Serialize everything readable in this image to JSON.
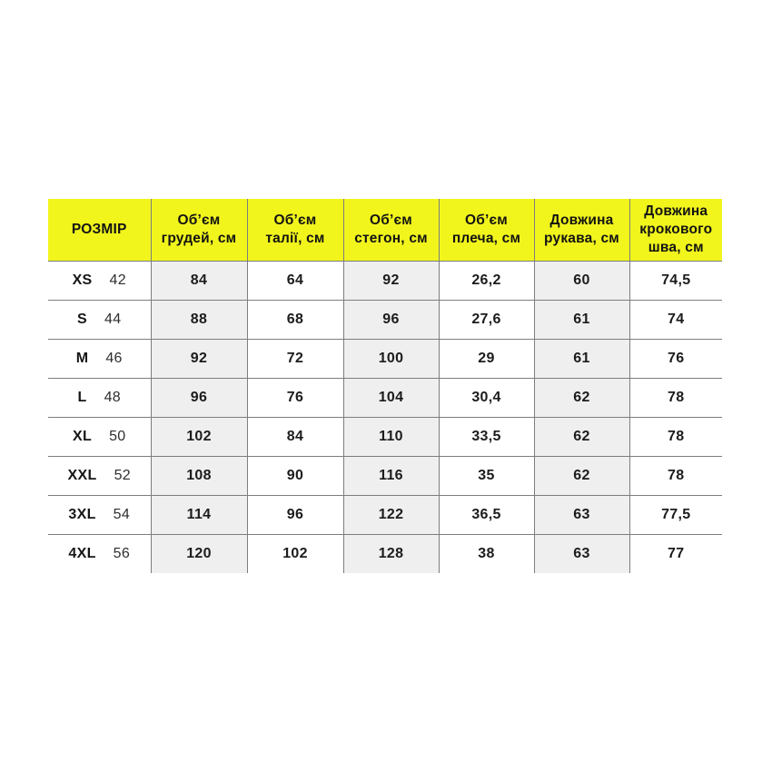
{
  "colors": {
    "header_background": "#f1f51c",
    "stripe_column_background": "#efefef",
    "border": "#7d7d7d",
    "text": "#1c1c1c",
    "page_background": "#ffffff"
  },
  "chart_data": {
    "type": "table",
    "title": "",
    "headers": [
      "РОЗМІР",
      "Об’єм\nгрудей, см",
      "Об’єм\nталії, см",
      "Об’єм\nстегон, см",
      "Об’єм\nплеча, см",
      "Довжина\nрукава, см",
      "Довжина\nкрокового\nшва, см"
    ],
    "rows": [
      {
        "size": "XS",
        "eu": "42",
        "values": [
          "84",
          "64",
          "92",
          "26,2",
          "60",
          "74,5"
        ]
      },
      {
        "size": "S",
        "eu": "44",
        "values": [
          "88",
          "68",
          "96",
          "27,6",
          "61",
          "74"
        ]
      },
      {
        "size": "M",
        "eu": "46",
        "values": [
          "92",
          "72",
          "100",
          "29",
          "61",
          "76"
        ]
      },
      {
        "size": "L",
        "eu": "48",
        "values": [
          "96",
          "76",
          "104",
          "30,4",
          "62",
          "78"
        ]
      },
      {
        "size": "XL",
        "eu": "50",
        "values": [
          "102",
          "84",
          "110",
          "33,5",
          "62",
          "78"
        ]
      },
      {
        "size": "XXL",
        "eu": "52",
        "values": [
          "108",
          "90",
          "116",
          "35",
          "62",
          "78"
        ]
      },
      {
        "size": "3XL",
        "eu": "54",
        "values": [
          "114",
          "96",
          "122",
          "36,5",
          "63",
          "77,5"
        ]
      },
      {
        "size": "4XL",
        "eu": "56",
        "values": [
          "120",
          "102",
          "128",
          "38",
          "63",
          "77"
        ]
      }
    ]
  }
}
